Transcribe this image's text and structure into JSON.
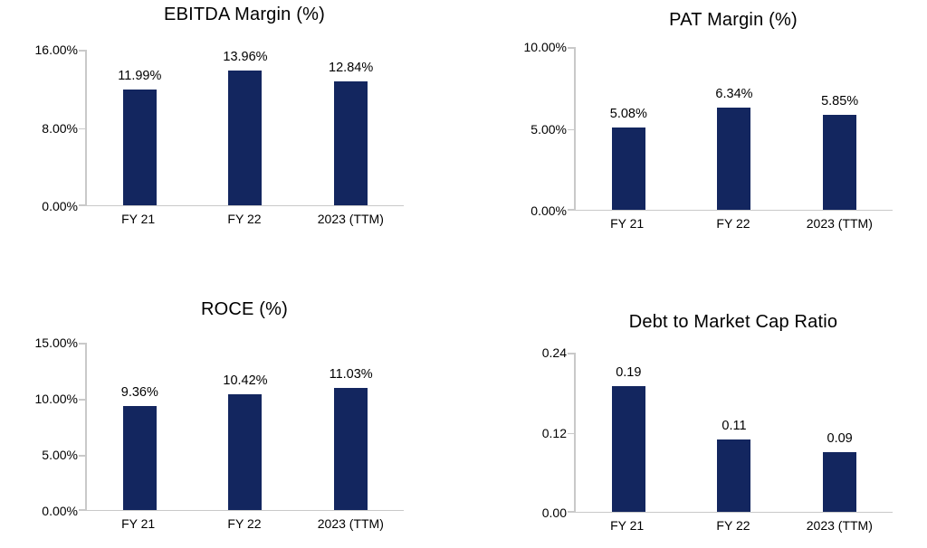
{
  "page": {
    "background_color": "#ffffff",
    "text_color": "#000000",
    "axis_color": "#c9c9c9",
    "bar_color": "#13265f"
  },
  "chart_data": [
    {
      "type": "bar",
      "title": "EBITDA Margin (%)",
      "categories": [
        "FY 21",
        "FY 22",
        "2023 (TTM)"
      ],
      "values": [
        11.99,
        13.96,
        12.84
      ],
      "value_labels": [
        "11.99%",
        "13.96%",
        "12.84%"
      ],
      "ylim": [
        0,
        16
      ],
      "yticks": [
        {
          "value": 16,
          "label": "16.00%"
        },
        {
          "value": 8,
          "label": "8.00%"
        },
        {
          "value": 0,
          "label": "0.00%"
        }
      ],
      "xlabel": "",
      "ylabel": "",
      "grid": false,
      "legend": "none"
    },
    {
      "type": "bar",
      "title": "PAT Margin (%)",
      "categories": [
        "FY 21",
        "FY 22",
        "2023 (TTM)"
      ],
      "values": [
        5.08,
        6.34,
        5.85
      ],
      "value_labels": [
        "5.08%",
        "6.34%",
        "5.85%"
      ],
      "ylim": [
        0,
        10
      ],
      "yticks": [
        {
          "value": 10,
          "label": "10.00%"
        },
        {
          "value": 5,
          "label": "5.00%"
        },
        {
          "value": 0,
          "label": "0.00%"
        }
      ],
      "xlabel": "",
      "ylabel": "",
      "grid": false,
      "legend": "none"
    },
    {
      "type": "bar",
      "title": "ROCE (%)",
      "categories": [
        "FY 21",
        "FY 22",
        "2023 (TTM)"
      ],
      "values": [
        9.36,
        10.42,
        11.03
      ],
      "value_labels": [
        "9.36%",
        "10.42%",
        "11.03%"
      ],
      "ylim": [
        0,
        15
      ],
      "yticks": [
        {
          "value": 15,
          "label": "15.00%"
        },
        {
          "value": 10,
          "label": "10.00%"
        },
        {
          "value": 5,
          "label": "5.00%"
        },
        {
          "value": 0,
          "label": "0.00%"
        }
      ],
      "xlabel": "",
      "ylabel": "",
      "grid": false,
      "legend": "none"
    },
    {
      "type": "bar",
      "title": "Debt to Market Cap Ratio",
      "categories": [
        "FY 21",
        "FY 22",
        "2023 (TTM)"
      ],
      "values": [
        0.19,
        0.11,
        0.09
      ],
      "value_labels": [
        "0.19",
        "0.11",
        "0.09"
      ],
      "ylim": [
        0,
        0.24
      ],
      "yticks": [
        {
          "value": 0.24,
          "label": "0.24"
        },
        {
          "value": 0.12,
          "label": "0.12"
        },
        {
          "value": 0,
          "label": "0.00"
        }
      ],
      "xlabel": "",
      "ylabel": "",
      "grid": false,
      "legend": "none"
    }
  ]
}
